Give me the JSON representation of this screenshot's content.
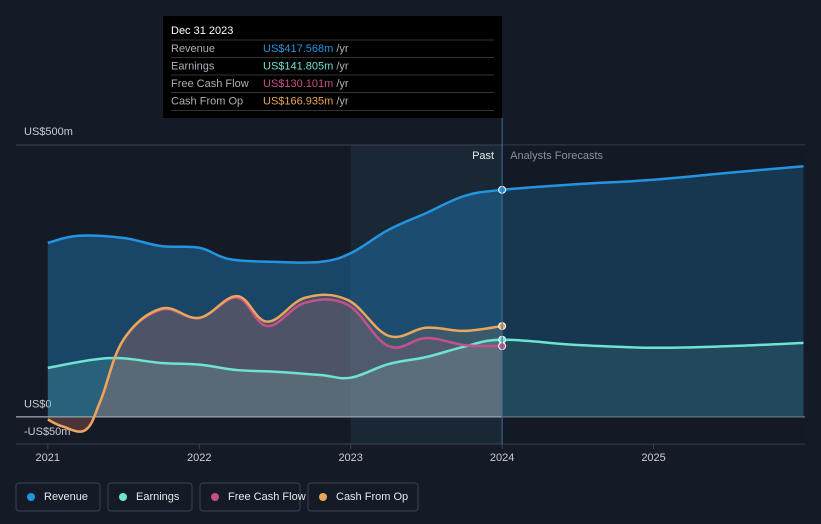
{
  "chart_data": {
    "type": "line",
    "xlim": [
      2020.79,
      2026.0
    ],
    "xticks": [
      2021,
      2022,
      2023,
      2024,
      2025
    ],
    "ylim": [
      -50,
      500
    ],
    "yticks": [
      {
        "value": -50,
        "label": "-US$50m"
      },
      {
        "value": 0,
        "label": "US$0"
      },
      {
        "value": 500,
        "label": "US$500m"
      }
    ],
    "forecast_start": 2024,
    "past_label": "Past",
    "forecast_label": "Analysts Forecasts",
    "series": [
      {
        "name": "Revenue",
        "color": "#2394df",
        "x": [
          2021,
          2021.2,
          2021.5,
          2021.75,
          2022,
          2022.2,
          2022.5,
          2022.8,
          2023,
          2023.25,
          2023.5,
          2023.75,
          2024,
          2024.5,
          2025,
          2025.5,
          2025.99
        ],
        "values": [
          320,
          333,
          329,
          314,
          311,
          290,
          285,
          285,
          301,
          344,
          375,
          406,
          417.568,
          428,
          436,
          449,
          461
        ]
      },
      {
        "name": "Earnings",
        "color": "#6ee2d3",
        "x": [
          2021,
          2021.4,
          2021.75,
          2022,
          2022.25,
          2022.5,
          2022.8,
          2023,
          2023.25,
          2023.5,
          2023.75,
          2024,
          2024.5,
          2025,
          2025.5,
          2025.99
        ],
        "values": [
          90,
          108,
          99,
          96,
          86,
          83,
          77,
          72,
          97,
          110,
          129,
          141.805,
          132,
          127,
          130,
          136
        ]
      },
      {
        "name": "Free Cash Flow",
        "color": "#c94f8a",
        "x": [
          2021,
          2021.1,
          2021.25,
          2021.35,
          2021.5,
          2021.75,
          2022,
          2022.25,
          2022.45,
          2022.7,
          2022.98,
          2023.25,
          2023.5,
          2023.75,
          2024
        ],
        "values": [
          -5,
          -18,
          -24,
          31,
          142,
          197,
          182,
          219,
          167,
          210,
          206,
          130,
          145,
          132,
          130.101
        ]
      },
      {
        "name": "Cash From Op",
        "color": "#e8a75a",
        "x": [
          2021,
          2021.1,
          2021.25,
          2021.35,
          2021.5,
          2021.75,
          2022,
          2022.25,
          2022.45,
          2022.7,
          2022.98,
          2023.25,
          2023.5,
          2023.75,
          2024
        ],
        "values": [
          -5,
          -18,
          -24,
          31,
          142,
          199,
          182,
          222,
          175,
          219,
          215,
          149,
          164,
          158,
          166.935
        ]
      }
    ],
    "tooltip": {
      "date": "Dec 31 2023",
      "rows": [
        {
          "label": "Revenue",
          "value": "US$417.568m",
          "unit": "/yr"
        },
        {
          "label": "Earnings",
          "value": "US$141.805m",
          "unit": "/yr"
        },
        {
          "label": "Free Cash Flow",
          "value": "US$130.101m",
          "unit": "/yr"
        },
        {
          "label": "Cash From Op",
          "value": "US$166.935m",
          "unit": "/yr"
        }
      ]
    }
  }
}
